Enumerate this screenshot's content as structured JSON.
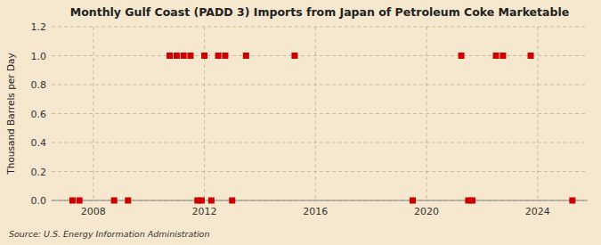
{
  "chart_data": {
    "type": "scatter",
    "title": "Monthly Gulf Coast (PADD 3) Imports from Japan of Petroleum Coke Marketable",
    "y_label": "Thousand Barrels per Day",
    "source": "Source: U.S. Energy Information Administration",
    "x": [
      2007.25,
      2007.5,
      2008.75,
      2009.25,
      2010.75,
      2011.0,
      2011.25,
      2011.5,
      2011.75,
      2011.9,
      2012.0,
      2012.25,
      2012.5,
      2012.75,
      2013.0,
      2013.5,
      2015.25,
      2019.5,
      2021.25,
      2021.5,
      2021.65,
      2022.5,
      2022.75,
      2023.75,
      2025.25
    ],
    "values": [
      0.0,
      0.0,
      0.0,
      0.0,
      1.0,
      1.0,
      1.0,
      1.0,
      0.0,
      0.0,
      1.0,
      0.0,
      1.0,
      1.0,
      0.0,
      1.0,
      1.0,
      0.0,
      1.0,
      0.0,
      0.0,
      1.0,
      1.0,
      1.0,
      0.0
    ],
    "color": "#cc0000",
    "marker": "square",
    "xlim": [
      2006.5,
      2025.8
    ],
    "xticks": [
      2008,
      2012,
      2016,
      2020,
      2024
    ],
    "ylim": [
      0,
      1.2
    ],
    "yticks": [
      {
        "value": 0.0,
        "label": "0.0"
      },
      0.2,
      0.4,
      0.6,
      0.8,
      {
        "value": 1.0,
        "label": "1.0"
      },
      1.2
    ],
    "grid": true
  }
}
